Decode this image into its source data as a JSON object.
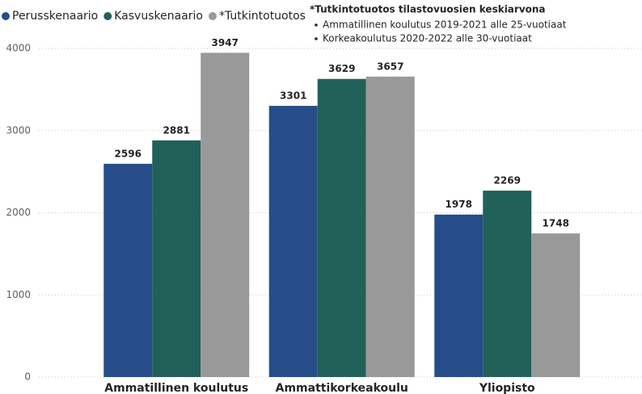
{
  "chart_data": {
    "type": "bar",
    "categories": [
      "Ammatillinen koulutus",
      "Ammattikorkeakoulu",
      "Yliopisto"
    ],
    "series": [
      {
        "name": "Perusskenaario",
        "color": "#264d8a",
        "values": [
          2596,
          3301,
          1978
        ]
      },
      {
        "name": "Kasvuskenaario",
        "color": "#22605a",
        "values": [
          2881,
          3629,
          2269
        ]
      },
      {
        "name": "*Tutkintotuotos",
        "color": "#999999",
        "values": [
          3947,
          3657,
          1748
        ]
      }
    ],
    "ylim": [
      0,
      4000
    ],
    "yticks": [
      0,
      1000,
      2000,
      3000,
      4000
    ],
    "grid": true,
    "legend": "top-left",
    "note": {
      "title": "*Tutkintotuotos tilastovuosien keskiarvona",
      "items": [
        "Ammatillinen koulutus 2019-2021 alle 25-vuotiaat",
        "Korkeakoulutus 2020-2022 alle 30-vuotiaat"
      ]
    }
  }
}
